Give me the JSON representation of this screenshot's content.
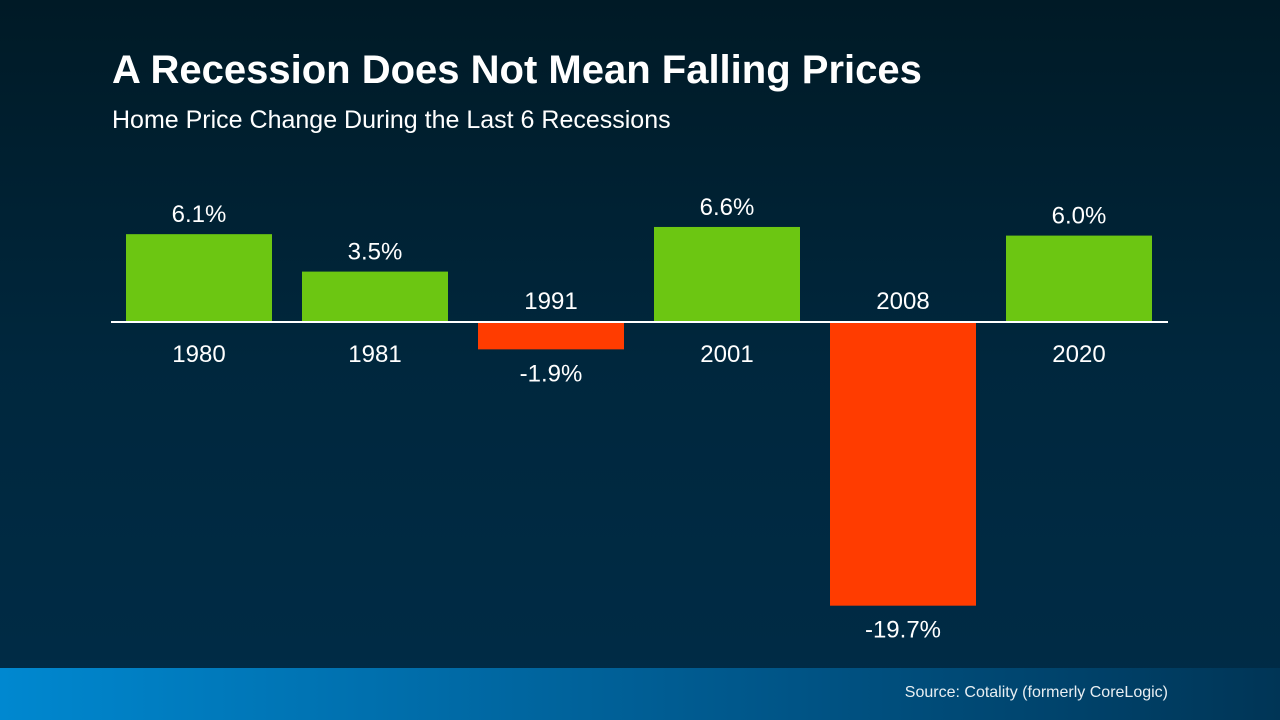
{
  "header": {
    "title": "A Recession Does Not Mean Falling Prices",
    "subtitle": "Home Price Change During the Last 6 Recessions"
  },
  "chart_data": {
    "type": "bar",
    "categories": [
      "1980",
      "1981",
      "1991",
      "2001",
      "2008",
      "2020"
    ],
    "values": [
      6.1,
      3.5,
      -1.9,
      6.6,
      -19.7,
      6.0
    ],
    "value_labels": [
      "6.1%",
      "3.5%",
      "-1.9%",
      "6.6%",
      "-19.7%",
      "6.0%"
    ],
    "colors": {
      "positive": "#6cc612",
      "negative": "#ff3c00",
      "baseline": "#ffffff"
    },
    "grid": false
  },
  "footer": {
    "source": "Source: Cotality (formerly CoreLogic)"
  }
}
